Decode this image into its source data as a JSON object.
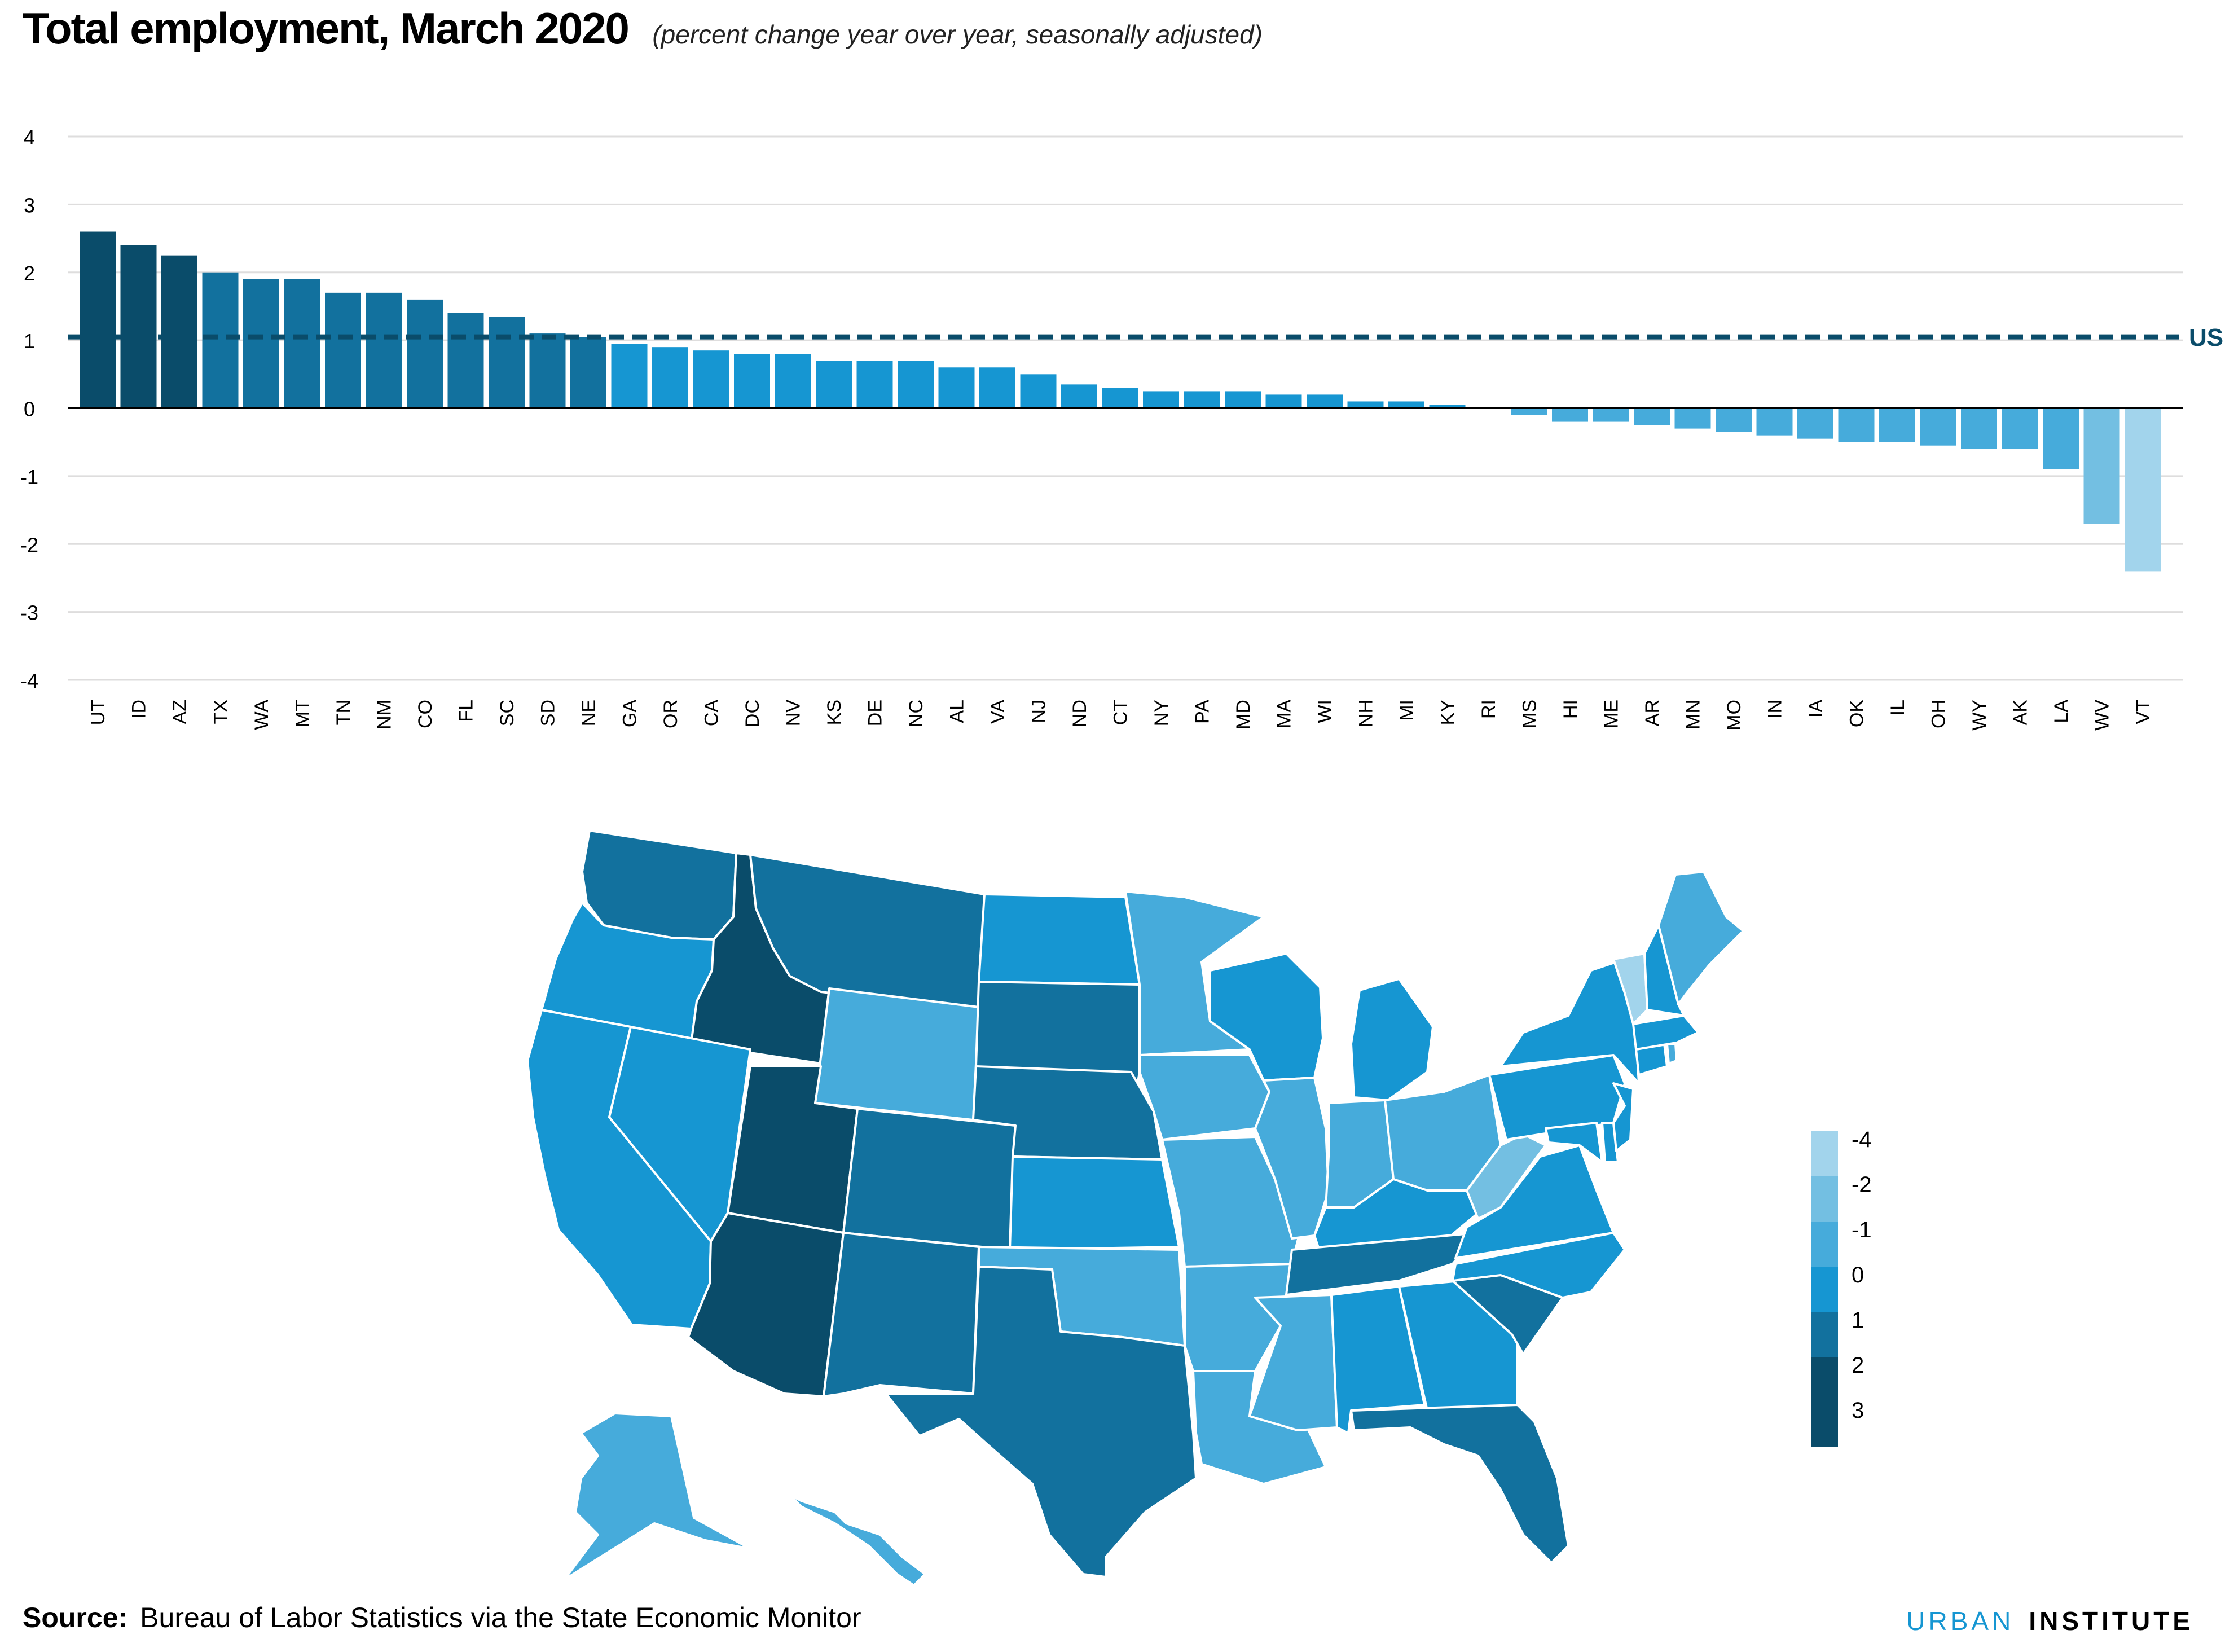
{
  "title": "Total employment, March 2020",
  "subtitle": "(percent change year over year, seasonally adjusted)",
  "source_label": "Source:",
  "source_text": "Bureau of Labor Statistics via the State Economic Monitor",
  "logo": {
    "part1": "URBAN",
    "part2": "INSTITUTE"
  },
  "colors": {
    "bin_3": "#0a4c6a",
    "bin_2": "#12719e",
    "bin_1": "#1696d2",
    "bin_0": "#46abdb",
    "bin_m1": "#73bfe2",
    "bin_m2": "#a2d4ec",
    "reference_line": "#0a4c6a",
    "grid": "#dedddd",
    "zero_line": "#000000"
  },
  "chart_data": [
    {
      "type": "bar",
      "title": "Total employment, March 2020",
      "subtitle": "(percent change year over year, seasonally adjusted)",
      "xlabel": "",
      "ylabel": "",
      "ylim": [
        -4,
        4
      ],
      "yticks": [
        4,
        3,
        2,
        1,
        0,
        -1,
        -2,
        -3,
        -4
      ],
      "grid": true,
      "categories": [
        "UT",
        "ID",
        "AZ",
        "TX",
        "WA",
        "MT",
        "TN",
        "NM",
        "CO",
        "FL",
        "SC",
        "SD",
        "NE",
        "GA",
        "OR",
        "CA",
        "DC",
        "NV",
        "KS",
        "DE",
        "NC",
        "AL",
        "VA",
        "NJ",
        "ND",
        "CT",
        "NY",
        "PA",
        "MD",
        "MA",
        "WI",
        "NH",
        "MI",
        "KY",
        "RI",
        "MS",
        "HI",
        "ME",
        "AR",
        "MN",
        "MO",
        "IN",
        "IA",
        "OK",
        "IL",
        "OH",
        "WY",
        "AK",
        "LA",
        "WV",
        "VT"
      ],
      "values": [
        2.6,
        2.4,
        2.25,
        2.0,
        1.9,
        1.9,
        1.7,
        1.7,
        1.6,
        1.4,
        1.35,
        1.1,
        1.05,
        0.95,
        0.9,
        0.85,
        0.8,
        0.8,
        0.7,
        0.7,
        0.7,
        0.6,
        0.6,
        0.5,
        0.35,
        0.3,
        0.25,
        0.25,
        0.25,
        0.2,
        0.2,
        0.1,
        0.1,
        0.05,
        0.0,
        -0.1,
        -0.2,
        -0.2,
        -0.25,
        -0.3,
        -0.35,
        -0.4,
        -0.45,
        -0.5,
        -0.5,
        -0.55,
        -0.6,
        -0.6,
        -0.9,
        -1.7,
        -2.4
      ],
      "reference_line": {
        "label": "US",
        "value": 1.05
      }
    },
    {
      "type": "choropleth",
      "legend_entries": [
        "-4",
        "-2",
        "-1",
        "0",
        "1",
        "2",
        "3"
      ],
      "legend_colors": [
        "#a2d4ec",
        "#73bfe2",
        "#46abdb",
        "#1696d2",
        "#12719e",
        "#0a4c6a",
        "#0a4c6a"
      ],
      "legend_placement": "right"
    }
  ]
}
